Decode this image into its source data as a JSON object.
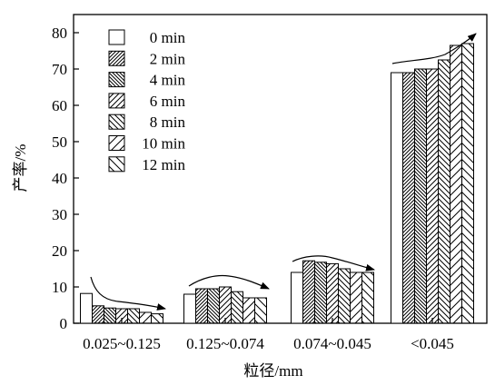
{
  "chart_data": {
    "type": "bar",
    "title": "",
    "xlabel": "粒径/mm",
    "ylabel": "产率/%",
    "ylim": [
      0,
      85
    ],
    "yticks": [
      0,
      10,
      20,
      30,
      40,
      50,
      60,
      70,
      80
    ],
    "grid": false,
    "legend_position": "top-left",
    "categories": [
      "0.025~0.125",
      "0.125~0.074",
      "0.074~0.045",
      "<0.045"
    ],
    "series": [
      {
        "name": "0 min",
        "pattern": "blank",
        "values": [
          8.2,
          8.0,
          14.0,
          69.0
        ]
      },
      {
        "name": "2 min",
        "pattern": "diagonal-dense",
        "values": [
          4.8,
          9.5,
          17.2,
          69.0
        ]
      },
      {
        "name": "4 min",
        "pattern": "backdiagonal-dense",
        "values": [
          4.2,
          9.5,
          16.8,
          70.0
        ]
      },
      {
        "name": "6 min",
        "pattern": "diagonal",
        "values": [
          4.0,
          10.0,
          16.4,
          70.0
        ]
      },
      {
        "name": "8 min",
        "pattern": "backdiagonal",
        "values": [
          4.0,
          8.7,
          15.0,
          72.5
        ]
      },
      {
        "name": "10 min",
        "pattern": "diagonal-sparse",
        "values": [
          3.0,
          7.0,
          14.0,
          76.5
        ]
      },
      {
        "name": "12 min",
        "pattern": "backdiagonal-sparse",
        "values": [
          2.6,
          7.0,
          14.0,
          77.0
        ]
      }
    ],
    "colors": {
      "stroke": "#000000",
      "fill": "#ffffff"
    }
  }
}
